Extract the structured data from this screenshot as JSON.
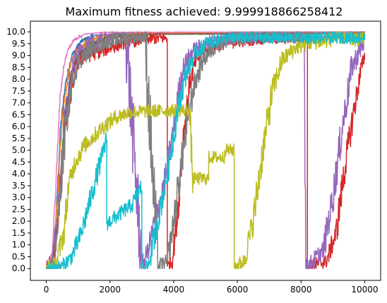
{
  "chart_data": {
    "type": "line",
    "title": "Maximum fitness achieved: 9.999918866258412",
    "xlabel": "",
    "ylabel": "",
    "xlim": [
      -500,
      10500
    ],
    "ylim": [
      -0.5,
      10.45
    ],
    "x_ticks": [
      0,
      2000,
      4000,
      6000,
      8000,
      10000
    ],
    "y_ticks": [
      "0.0",
      "0.5",
      "1.0",
      "1.5",
      "2.0",
      "2.5",
      "3.0",
      "3.5",
      "4.0",
      "4.5",
      "5.0",
      "5.5",
      "6.0",
      "6.5",
      "7.0",
      "7.5",
      "8.0",
      "8.5",
      "9.0",
      "9.5",
      "10.0"
    ],
    "grid": false,
    "legend": "none",
    "series": [
      {
        "color": "#1f77b4",
        "points": [
          [
            0,
            0
          ],
          [
            200,
            0.3
          ],
          [
            320,
            2.5
          ],
          [
            450,
            6.0
          ],
          [
            600,
            7.8
          ],
          [
            800,
            9.0
          ],
          [
            1100,
            9.6
          ],
          [
            1500,
            9.85
          ],
          [
            2500,
            9.95
          ],
          [
            10000,
            10.0
          ]
        ],
        "noise": 0.15
      },
      {
        "color": "#ff7f0e",
        "points": [
          [
            0,
            0
          ],
          [
            220,
            0.4
          ],
          [
            350,
            3.0
          ],
          [
            500,
            6.5
          ],
          [
            700,
            8.3
          ],
          [
            900,
            9.1
          ],
          [
            1300,
            9.6
          ],
          [
            1800,
            9.85
          ],
          [
            3000,
            9.95
          ],
          [
            10000,
            10.0
          ]
        ],
        "noise": 0.15
      },
      {
        "color": "#2ca02c",
        "points": [
          [
            0,
            0
          ],
          [
            250,
            0.2
          ],
          [
            400,
            2.8
          ],
          [
            560,
            6.2
          ],
          [
            780,
            8.2
          ],
          [
            1000,
            9.0
          ],
          [
            1500,
            9.5
          ],
          [
            2200,
            9.8
          ],
          [
            3500,
            9.9
          ],
          [
            10000,
            9.93
          ]
        ],
        "noise": 0.15
      },
      {
        "color": "#d62728",
        "points": [
          [
            0,
            0
          ],
          [
            240,
            0.5
          ],
          [
            400,
            2.5
          ],
          [
            600,
            6.0
          ],
          [
            800,
            7.8
          ],
          [
            1000,
            8.8
          ],
          [
            1500,
            9.1
          ],
          [
            2300,
            9.5
          ],
          [
            3000,
            9.7
          ],
          [
            3800,
            9.75
          ],
          [
            3800,
            0.1
          ],
          [
            3950,
            0.3
          ],
          [
            4100,
            2.0
          ],
          [
            4300,
            5.5
          ],
          [
            4500,
            7.8
          ],
          [
            4700,
            8.8
          ],
          [
            5000,
            9.2
          ],
          [
            5500,
            9.5
          ],
          [
            6500,
            9.7
          ],
          [
            8200,
            9.75
          ],
          [
            8200,
            0.1
          ],
          [
            8800,
            0.3
          ],
          [
            9100,
            1.5
          ],
          [
            9400,
            4.5
          ],
          [
            9700,
            7.0
          ],
          [
            9900,
            8.5
          ],
          [
            10000,
            9.0
          ]
        ],
        "noise": 0.45
      },
      {
        "color": "#9467bd",
        "points": [
          [
            0,
            0
          ],
          [
            200,
            0.2
          ],
          [
            380,
            2.5
          ],
          [
            550,
            6.0
          ],
          [
            750,
            8.0
          ],
          [
            950,
            9.0
          ],
          [
            1400,
            9.5
          ],
          [
            2000,
            9.8
          ],
          [
            2500,
            9.9
          ],
          [
            3000,
            0.1
          ],
          [
            3200,
            0.8
          ],
          [
            3400,
            2.0
          ],
          [
            3700,
            3.5
          ],
          [
            3950,
            5.5
          ],
          [
            4100,
            7.0
          ],
          [
            4300,
            8.5
          ],
          [
            4600,
            9.2
          ],
          [
            5200,
            9.6
          ],
          [
            6000,
            9.8
          ],
          [
            8100,
            9.85
          ],
          [
            8150,
            0.1
          ],
          [
            8300,
            0.2
          ],
          [
            8700,
            0.8
          ],
          [
            9000,
            3.0
          ],
          [
            9300,
            6.0
          ],
          [
            9600,
            8.5
          ],
          [
            10000,
            9.7
          ]
        ],
        "noise": 0.5
      },
      {
        "color": "#8c564b",
        "points": [
          [
            0,
            0
          ],
          [
            230,
            0.4
          ],
          [
            420,
            3.0
          ],
          [
            600,
            6.5
          ],
          [
            800,
            8.3
          ],
          [
            1000,
            9.0
          ],
          [
            1400,
            9.5
          ],
          [
            2000,
            9.8
          ],
          [
            3000,
            9.9
          ],
          [
            10000,
            9.95
          ]
        ],
        "noise": 0.12
      },
      {
        "color": "#e377c2",
        "points": [
          [
            0,
            0
          ],
          [
            180,
            0.6
          ],
          [
            300,
            3.5
          ],
          [
            420,
            7.0
          ],
          [
            550,
            8.6
          ],
          [
            700,
            9.3
          ],
          [
            900,
            9.7
          ],
          [
            1200,
            9.9
          ],
          [
            1800,
            9.98
          ],
          [
            10000,
            10.0
          ]
        ],
        "noise": 0.12
      },
      {
        "color": "#7f7f7f",
        "points": [
          [
            0,
            0
          ],
          [
            250,
            0.3
          ],
          [
            400,
            2.5
          ],
          [
            600,
            5.8
          ],
          [
            800,
            7.8
          ],
          [
            1000,
            8.7
          ],
          [
            1400,
            9.3
          ],
          [
            1900,
            9.6
          ],
          [
            2600,
            9.75
          ],
          [
            3100,
            9.8
          ],
          [
            3500,
            0.1
          ],
          [
            3800,
            0.3
          ],
          [
            4000,
            2.0
          ],
          [
            4300,
            5.0
          ],
          [
            4600,
            7.5
          ],
          [
            4900,
            8.8
          ],
          [
            5300,
            9.4
          ],
          [
            5800,
            9.7
          ],
          [
            6500,
            9.8
          ],
          [
            10000,
            9.85
          ]
        ],
        "noise": 0.5
      },
      {
        "color": "#bcbd22",
        "points": [
          [
            0,
            0
          ],
          [
            300,
            0.2
          ],
          [
            550,
            1.5
          ],
          [
            700,
            3.5
          ],
          [
            900,
            4.5
          ],
          [
            1200,
            5.2
          ],
          [
            1500,
            5.6
          ],
          [
            1800,
            6.0
          ],
          [
            2200,
            6.4
          ],
          [
            2600,
            6.6
          ],
          [
            3200,
            6.65
          ],
          [
            4500,
            6.7
          ],
          [
            4600,
            3.8
          ],
          [
            5100,
            3.8
          ],
          [
            5100,
            4.7
          ],
          [
            5600,
            4.7
          ],
          [
            5600,
            5.0
          ],
          [
            5900,
            5.0
          ],
          [
            5900,
            0.05
          ],
          [
            6200,
            0.3
          ],
          [
            6500,
            2.0
          ],
          [
            6800,
            5.0
          ],
          [
            7100,
            7.5
          ],
          [
            7400,
            8.8
          ],
          [
            7800,
            9.3
          ],
          [
            8200,
            9.5
          ],
          [
            8800,
            9.6
          ],
          [
            9200,
            9.8
          ],
          [
            9600,
            9.65
          ],
          [
            10000,
            9.7
          ]
        ],
        "noise": 0.5
      },
      {
        "color": "#17becf",
        "points": [
          [
            0,
            0
          ],
          [
            500,
            0.1
          ],
          [
            800,
            0.5
          ],
          [
            1100,
            1.5
          ],
          [
            1400,
            3.0
          ],
          [
            1700,
            4.5
          ],
          [
            1900,
            5.5
          ],
          [
            1900,
            1.9
          ],
          [
            2300,
            2.3
          ],
          [
            2700,
            2.7
          ],
          [
            3000,
            3.5
          ],
          [
            3000,
            0.05
          ],
          [
            3200,
            0.1
          ],
          [
            3500,
            2.0
          ],
          [
            3800,
            4.0
          ],
          [
            4100,
            6.5
          ],
          [
            4400,
            8.3
          ],
          [
            4700,
            9.1
          ],
          [
            5000,
            9.5
          ],
          [
            5500,
            9.7
          ],
          [
            6000,
            9.75
          ],
          [
            10000,
            9.75
          ]
        ],
        "noise": 0.45
      }
    ]
  }
}
